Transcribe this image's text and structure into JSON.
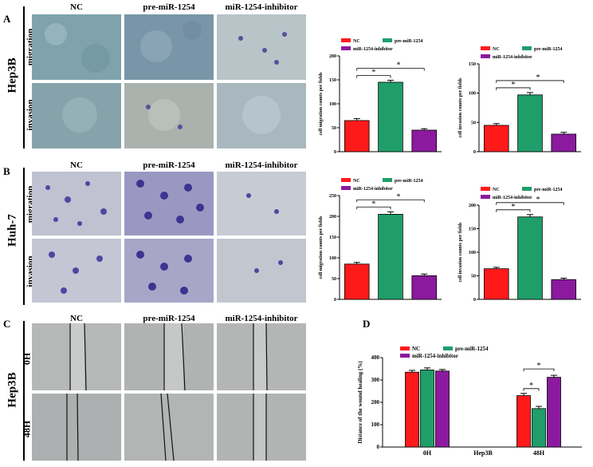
{
  "panels": {
    "A": {
      "letter": "A",
      "cell_line": "Hep3B",
      "conditions": [
        "NC",
        "pre-miR-1254",
        "miR-1254-inhibitor"
      ],
      "rows": [
        "migration",
        "invasion"
      ]
    },
    "B": {
      "letter": "B",
      "cell_line": "Huh-7",
      "conditions": [
        "NC",
        "pre-miR-1254",
        "miR-1254-inhibitor"
      ],
      "rows": [
        "migration",
        "invasion"
      ]
    },
    "C": {
      "letter": "C",
      "cell_line": "Hep3B",
      "conditions": [
        "NC",
        "pre-miR-1254",
        "miR-1254-inhibitor"
      ],
      "rows": [
        "0H",
        "48H"
      ]
    },
    "D": {
      "letter": "D"
    }
  },
  "colors": {
    "nc": "#ff1a1a",
    "pre": "#1f9e6a",
    "inh": "#8b1a9e"
  },
  "chart_data": [
    {
      "id": "A-migration",
      "type": "bar",
      "categories": [
        "NC",
        "pre-miR-1254",
        "miR-1254-inhibitor"
      ],
      "legend": [
        "NC",
        "pre-miR-1254",
        "miR-1254-inhibitor"
      ],
      "values": [
        65,
        145,
        45
      ],
      "errors": [
        4,
        4,
        3
      ],
      "ylabel": "cell migration counts per fields",
      "ylim": [
        0,
        200
      ],
      "yticks": [
        "0",
        "50",
        "100",
        "150",
        "200"
      ],
      "significance": [
        "*",
        "*"
      ]
    },
    {
      "id": "A-invasion",
      "type": "bar",
      "categories": [
        "NC",
        "pre-miR-1254",
        "miR-1254-inhibitor"
      ],
      "legend": [
        "NC",
        "pre-miR-1254",
        "miR-1254-inhibitor"
      ],
      "values": [
        45,
        97,
        30
      ],
      "errors": [
        3,
        4,
        3
      ],
      "ylabel": "cell invasion counts per fields",
      "ylim": [
        0,
        150
      ],
      "yticks": [
        "0",
        "50",
        "100",
        "150"
      ],
      "significance": [
        "*",
        "*"
      ]
    },
    {
      "id": "B-migration",
      "type": "bar",
      "categories": [
        "NC",
        "pre-miR-1254",
        "miR-1254-inhibitor"
      ],
      "legend": [
        "NC",
        "pre-miR-1254",
        "miR-1254-inhibitor"
      ],
      "values": [
        85,
        205,
        57
      ],
      "errors": [
        4,
        6,
        4
      ],
      "ylabel": "cell migration counts per fields",
      "ylim": [
        0,
        250
      ],
      "yticks": [
        "0",
        "50",
        "100",
        "150",
        "200",
        "250"
      ],
      "significance": [
        "*",
        "*"
      ]
    },
    {
      "id": "B-invasion",
      "type": "bar",
      "categories": [
        "NC",
        "pre-miR-1254",
        "miR-1254-inhibitor"
      ],
      "legend": [
        "NC",
        "pre-miR-1254",
        "miR-1254-inhibitor"
      ],
      "values": [
        65,
        175,
        42
      ],
      "errors": [
        3,
        5,
        3
      ],
      "ylabel": "cell invasion counts per fields",
      "ylim": [
        0,
        200
      ],
      "yticks": [
        "0",
        "50",
        "100",
        "150",
        "200"
      ],
      "significance": [
        "*",
        "*"
      ]
    },
    {
      "id": "D-wound",
      "type": "bar",
      "categories": [
        "0H",
        "48H"
      ],
      "xlabel": "Hep3B",
      "legend": [
        "NC",
        "pre-miR-1254",
        "miR-1254-inhibitor"
      ],
      "series": [
        {
          "name": "NC",
          "values": [
            335,
            230
          ],
          "errors": [
            8,
            10
          ]
        },
        {
          "name": "pre-miR-1254",
          "values": [
            345,
            172
          ],
          "errors": [
            9,
            10
          ]
        },
        {
          "name": "miR-1254-inhibitor",
          "values": [
            340,
            312
          ],
          "errors": [
            7,
            9
          ]
        }
      ],
      "ylabel": "Distance of the wound healing (%)",
      "ylim": [
        0,
        400
      ],
      "yticks": [
        "0",
        "100",
        "200",
        "300",
        "400"
      ],
      "significance": [
        "*",
        "*"
      ]
    }
  ]
}
